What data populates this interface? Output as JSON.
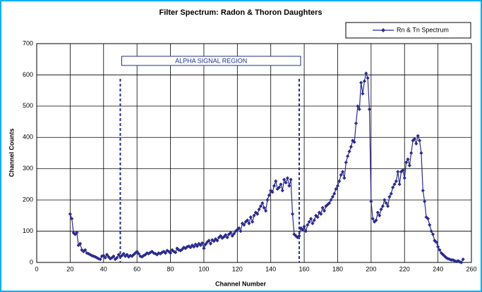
{
  "chart_data": {
    "type": "line",
    "title": "Filter Spectrum:  Radon & Thoron Daughters",
    "xlabel": "Channel Number",
    "ylabel": "Channel Counts",
    "annotation": "ALPHA SIGNAL REGION",
    "region_bounds": [
      50,
      157
    ],
    "legend": "upper right",
    "grid": true,
    "xlim": [
      0,
      260
    ],
    "xticks": [
      0,
      20,
      40,
      60,
      80,
      100,
      120,
      140,
      160,
      180,
      200,
      220,
      240,
      260
    ],
    "ylim": [
      0,
      700
    ],
    "yticks": [
      0,
      100,
      200,
      300,
      400,
      500,
      600,
      700
    ],
    "x": [
      20,
      21,
      22,
      23,
      24,
      25,
      26,
      27,
      28,
      29,
      30,
      31,
      32,
      33,
      34,
      35,
      36,
      37,
      38,
      39,
      40,
      41,
      42,
      43,
      44,
      45,
      46,
      47,
      48,
      49,
      50,
      51,
      52,
      53,
      54,
      55,
      56,
      57,
      58,
      59,
      60,
      61,
      62,
      63,
      64,
      65,
      66,
      67,
      68,
      69,
      70,
      71,
      72,
      73,
      74,
      75,
      76,
      77,
      78,
      79,
      80,
      81,
      82,
      83,
      84,
      85,
      86,
      87,
      88,
      89,
      90,
      91,
      92,
      93,
      94,
      95,
      96,
      97,
      98,
      99,
      100,
      101,
      102,
      103,
      104,
      105,
      106,
      107,
      108,
      109,
      110,
      111,
      112,
      113,
      114,
      115,
      116,
      117,
      118,
      119,
      120,
      121,
      122,
      123,
      124,
      125,
      126,
      127,
      128,
      129,
      130,
      131,
      132,
      133,
      134,
      135,
      136,
      137,
      138,
      139,
      140,
      141,
      142,
      143,
      144,
      145,
      146,
      147,
      148,
      149,
      150,
      151,
      152,
      153,
      154,
      155,
      156,
      157,
      158,
      159,
      160,
      161,
      162,
      163,
      164,
      165,
      166,
      167,
      168,
      169,
      170,
      171,
      172,
      173,
      174,
      175,
      176,
      177,
      178,
      179,
      180,
      181,
      182,
      183,
      184,
      185,
      186,
      187,
      188,
      189,
      190,
      191,
      192,
      193,
      194,
      195,
      196,
      197,
      198,
      199,
      200,
      201,
      202,
      203,
      204,
      205,
      206,
      207,
      208,
      209,
      210,
      211,
      212,
      213,
      214,
      215,
      216,
      217,
      218,
      219,
      220,
      221,
      222,
      223,
      224,
      225,
      226,
      227,
      228,
      229,
      230,
      231,
      232,
      233,
      234,
      235,
      236,
      237,
      238,
      239,
      240,
      241,
      242,
      243,
      244,
      245,
      246,
      247,
      248,
      249,
      250,
      251,
      252,
      253,
      254,
      255
    ],
    "series": [
      {
        "name": "Rn & Tn Spectrum",
        "color": "#2b2b8c",
        "values": [
          155,
          140,
          95,
          90,
          95,
          55,
          60,
          40,
          35,
          40,
          30,
          28,
          25,
          22,
          20,
          18,
          15,
          12,
          10,
          20,
          22,
          15,
          25,
          18,
          12,
          15,
          20,
          10,
          15,
          25,
          18,
          22,
          28,
          20,
          25,
          18,
          22,
          20,
          25,
          30,
          35,
          28,
          20,
          18,
          22,
          25,
          30,
          28,
          32,
          35,
          30,
          28,
          25,
          30,
          28,
          32,
          35,
          30,
          38,
          35,
          30,
          40,
          35,
          32,
          45,
          40,
          38,
          42,
          48,
          45,
          50,
          52,
          48,
          55,
          50,
          58,
          52,
          60,
          55,
          62,
          45,
          58,
          65,
          70,
          60,
          72,
          68,
          75,
          70,
          80,
          85,
          78,
          82,
          88,
          80,
          90,
          95,
          85,
          92,
          100,
          105,
          110,
          100,
          125,
          120,
          130,
          135,
          125,
          145,
          130,
          150,
          160,
          155,
          170,
          180,
          190,
          175,
          165,
          200,
          215,
          230,
          225,
          245,
          260,
          235,
          240,
          250,
          230,
          265,
          255,
          270,
          245,
          265,
          155,
          90,
          85,
          80,
          85,
          110,
          105,
          115,
          100,
          120,
          130,
          140,
          125,
          135,
          150,
          145,
          160,
          155,
          175,
          165,
          180,
          185,
          190,
          200,
          210,
          220,
          235,
          245,
          260,
          280,
          290,
          270,
          320,
          340,
          355,
          370,
          390,
          385,
          445,
          500,
          490,
          575,
          540,
          580,
          605,
          590,
          490,
          195,
          140,
          130,
          135,
          160,
          150,
          170,
          180,
          200,
          190,
          180,
          210,
          220,
          240,
          250,
          260,
          290,
          250,
          290,
          295,
          270,
          320,
          330,
          310,
          350,
          390,
          395,
          380,
          405,
          390,
          350,
          230,
          195,
          145,
          140,
          120,
          100,
          90,
          70,
          65,
          50,
          40,
          30,
          25,
          20,
          15,
          12,
          10,
          8,
          8,
          5,
          3,
          5,
          2,
          0,
          10
        ]
      }
    ]
  }
}
